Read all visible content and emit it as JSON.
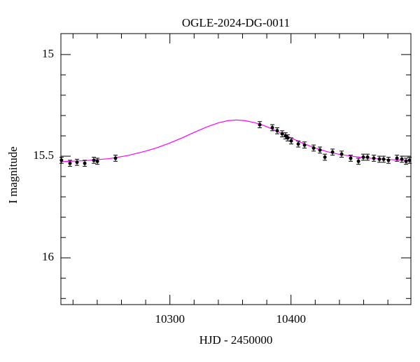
{
  "chart_data": {
    "type": "scatter",
    "title": "OGLE-2024-DG-0011",
    "x_label": "HJD - 2450000",
    "y_label": "I magnitude",
    "xlim": [
      10210,
      10499
    ],
    "ylim": [
      16.23,
      14.897
    ],
    "xticks": [
      10300,
      10400
    ],
    "yticks": [
      15,
      15.5,
      16
    ],
    "xminorticks": [
      10220,
      10240,
      10260,
      10280,
      10320,
      10340,
      10360,
      10380,
      10420,
      10440,
      10460,
      10480
    ],
    "yminorticks": [
      15.1,
      15.2,
      15.3,
      15.4,
      15.6,
      15.7,
      15.8,
      15.9,
      16.1,
      16.2
    ],
    "series": [
      {
        "name": "data",
        "color": "#000000",
        "error": 0.015,
        "x": [
          10210.5,
          10217.5,
          10223.3,
          10229.7,
          10237.2,
          10240.1,
          10255.1,
          10374.2,
          10384.6,
          10388.6,
          10392.7,
          10395.5,
          10397.3,
          10400.2,
          10406,
          10411.2,
          10418.7,
          10423.9,
          10428,
          10434.3,
          10441.8,
          10449.3,
          10455.7,
          10459.7,
          10463.2,
          10468.4,
          10473,
          10476.5,
          10480.5,
          10487.5,
          10491.5,
          10495,
          10497.9
        ],
        "values": [
          15.52,
          15.535,
          15.53,
          15.535,
          15.52,
          15.525,
          15.51,
          15.345,
          15.36,
          15.375,
          15.39,
          15.4,
          15.41,
          15.425,
          15.44,
          15.445,
          15.46,
          15.47,
          15.505,
          15.48,
          15.49,
          15.51,
          15.525,
          15.505,
          15.505,
          15.51,
          15.515,
          15.515,
          15.52,
          15.51,
          15.515,
          15.525,
          15.52
        ]
      },
      {
        "name": "model",
        "color": "#ff00ff",
        "x": [
          10210,
          10230,
          10250,
          10265,
          10280,
          10290,
          10300,
          10310,
          10320,
          10330,
          10340,
          10348,
          10355,
          10362,
          10370,
          10378,
          10385,
          10393,
          10400,
          10410,
          10420,
          10430,
          10440,
          10450,
          10460,
          10470,
          10480,
          10490,
          10499
        ],
        "values": [
          15.527,
          15.522,
          15.512,
          15.497,
          15.475,
          15.457,
          15.435,
          15.41,
          15.383,
          15.357,
          15.336,
          15.325,
          15.322,
          15.325,
          15.335,
          15.35,
          15.368,
          15.39,
          15.41,
          15.437,
          15.46,
          15.478,
          15.491,
          15.5,
          15.507,
          15.512,
          15.516,
          15.519,
          15.521
        ]
      }
    ]
  }
}
